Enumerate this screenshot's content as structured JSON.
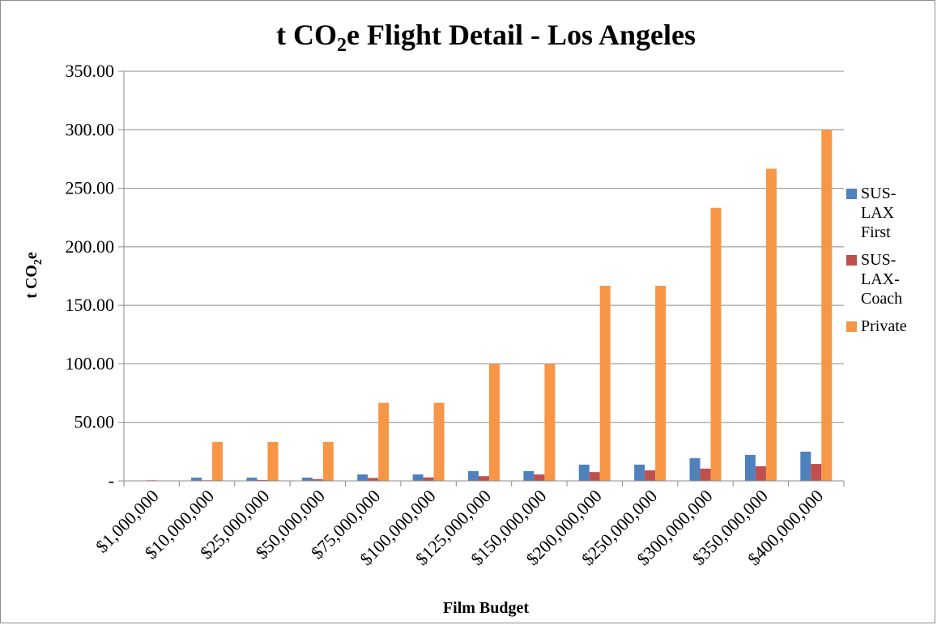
{
  "chart_data": {
    "type": "bar",
    "title": {
      "prefix": "t CO",
      "subscript": "2",
      "suffix": "e Flight Detail - Los Angeles"
    },
    "xlabel": "Film Budget",
    "ylabel": {
      "prefix": "t CO",
      "subscript": "2",
      "suffix": "e"
    },
    "ylim": [
      0,
      350
    ],
    "y_ticks": [
      {
        "value": 0,
        "label": "-"
      },
      {
        "value": 50,
        "label": "50.00"
      },
      {
        "value": 100,
        "label": "100.00"
      },
      {
        "value": 150,
        "label": "150.00"
      },
      {
        "value": 200,
        "label": "200.00"
      },
      {
        "value": 250,
        "label": "250.00"
      },
      {
        "value": 300,
        "label": "300.00"
      },
      {
        "value": 350,
        "label": "350.00"
      }
    ],
    "grid": true,
    "legend_position": "right",
    "categories": [
      "$1,000,000",
      "$10,000,000",
      "$25,000,000",
      "$50,000,000",
      "$75,000,000",
      "$100,000,000",
      "$125,000,000",
      "$150,000,000",
      "$200,000,000",
      "$250,000,000",
      "$300,000,000",
      "$350,000,000",
      "$400,000,000"
    ],
    "series": [
      {
        "name_lines": [
          "SUS-",
          "LAX",
          "First"
        ],
        "color": "#4f81bd",
        "values": [
          0.3,
          2.8,
          2.8,
          2.8,
          5.5,
          5.5,
          8.3,
          8.3,
          13.9,
          13.9,
          19.4,
          22.2,
          25.0
        ]
      },
      {
        "name_lines": [
          "SUS-",
          "LAX-",
          "Coach"
        ],
        "color": "#c0504d",
        "values": [
          0.5,
          0.5,
          0.8,
          1.5,
          2.5,
          3.0,
          4.0,
          5.5,
          7.5,
          9.0,
          10.5,
          12.5,
          14.5
        ]
      },
      {
        "name_lines": [
          "Private"
        ],
        "color": "#f79646",
        "values": [
          0,
          33.3,
          33.3,
          33.3,
          66.7,
          66.7,
          100,
          100,
          166.7,
          166.7,
          233.3,
          266.7,
          300
        ]
      }
    ]
  }
}
